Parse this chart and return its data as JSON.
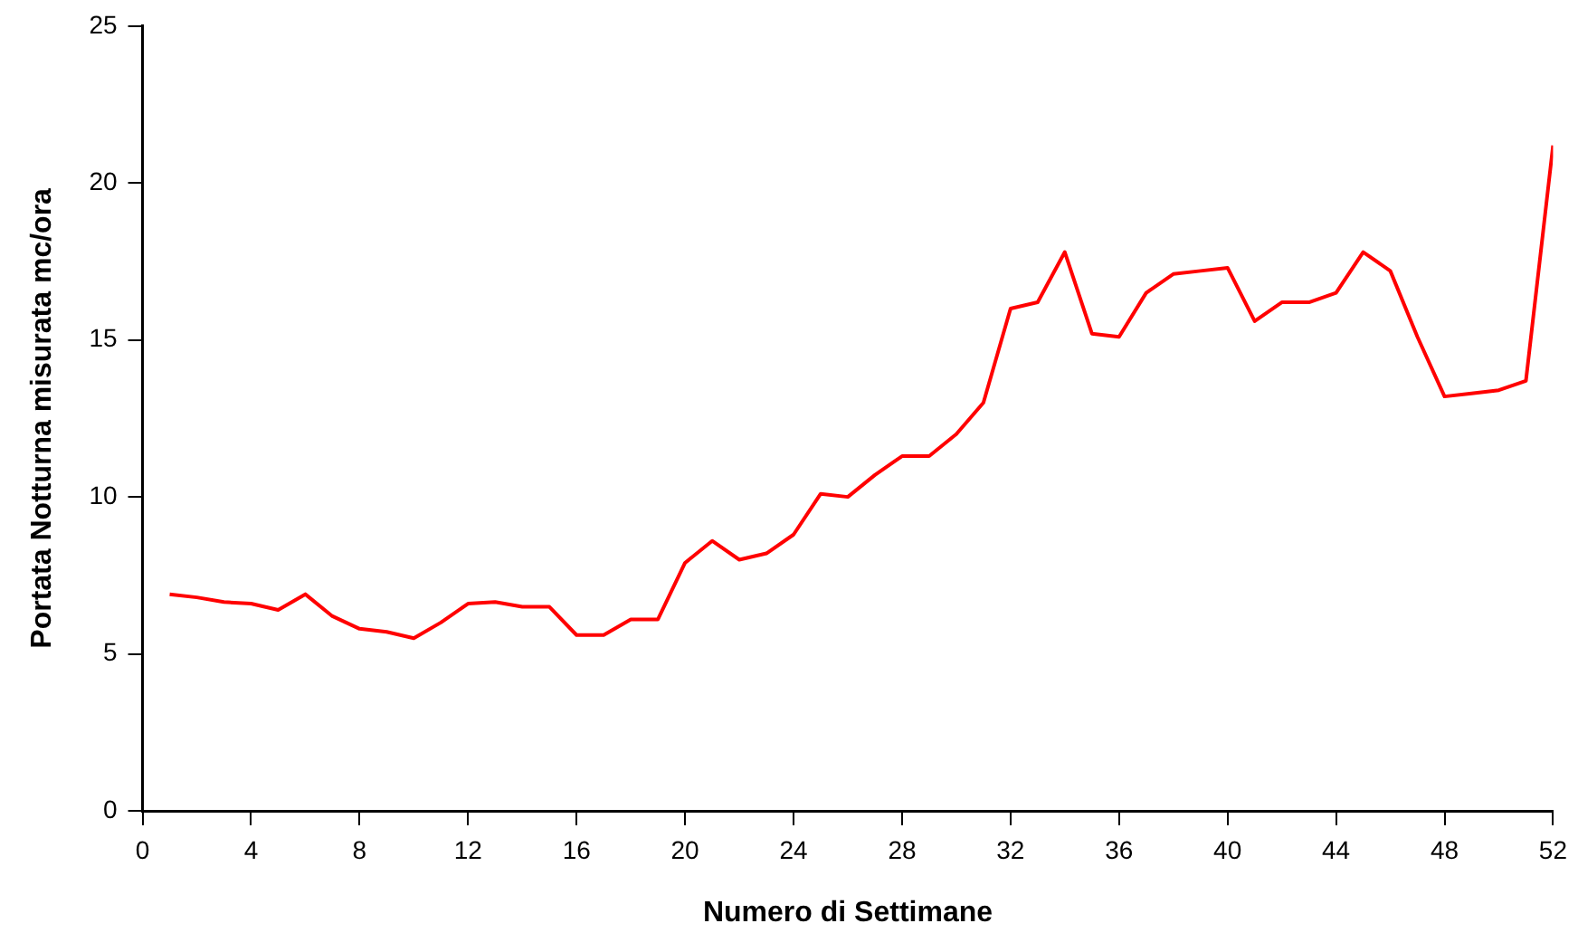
{
  "chart_data": {
    "type": "line",
    "xlabel": "Numero di Settimane",
    "ylabel": "Portata Notturna misurata mc/ora",
    "x": [
      1,
      2,
      3,
      4,
      5,
      6,
      7,
      8,
      9,
      10,
      11,
      12,
      13,
      14,
      15,
      16,
      17,
      18,
      19,
      20,
      21,
      22,
      23,
      24,
      25,
      26,
      27,
      28,
      29,
      30,
      31,
      32,
      33,
      34,
      35,
      36,
      37,
      38,
      39,
      40,
      41,
      42,
      43,
      44,
      45,
      46,
      47,
      48,
      49,
      50,
      51,
      52
    ],
    "series": [
      {
        "color": "#ff0000",
        "values": [
          6.9,
          6.8,
          6.65,
          6.6,
          6.4,
          6.9,
          6.2,
          5.8,
          5.7,
          5.5,
          6.0,
          6.6,
          6.65,
          6.5,
          6.5,
          5.6,
          5.6,
          6.1,
          6.1,
          7.9,
          8.6,
          8.0,
          8.2,
          8.8,
          10.1,
          10.0,
          10.7,
          11.3,
          11.3,
          12.0,
          13.0,
          16.0,
          16.2,
          17.8,
          15.2,
          15.1,
          16.5,
          17.1,
          17.2,
          17.3,
          15.6,
          16.2,
          16.2,
          16.5,
          17.8,
          17.2,
          15.1,
          13.2,
          13.3,
          13.4,
          13.7,
          21.2
        ]
      }
    ],
    "xlim": [
      0,
      52
    ],
    "xticks": [
      0,
      4,
      8,
      12,
      16,
      20,
      24,
      28,
      32,
      36,
      40,
      44,
      48,
      52
    ],
    "ylim": [
      0,
      25
    ],
    "yticks": [
      0,
      5,
      10,
      15,
      20,
      25
    ],
    "grid": false,
    "legend": false,
    "marker": "none",
    "line_style": "solid"
  }
}
